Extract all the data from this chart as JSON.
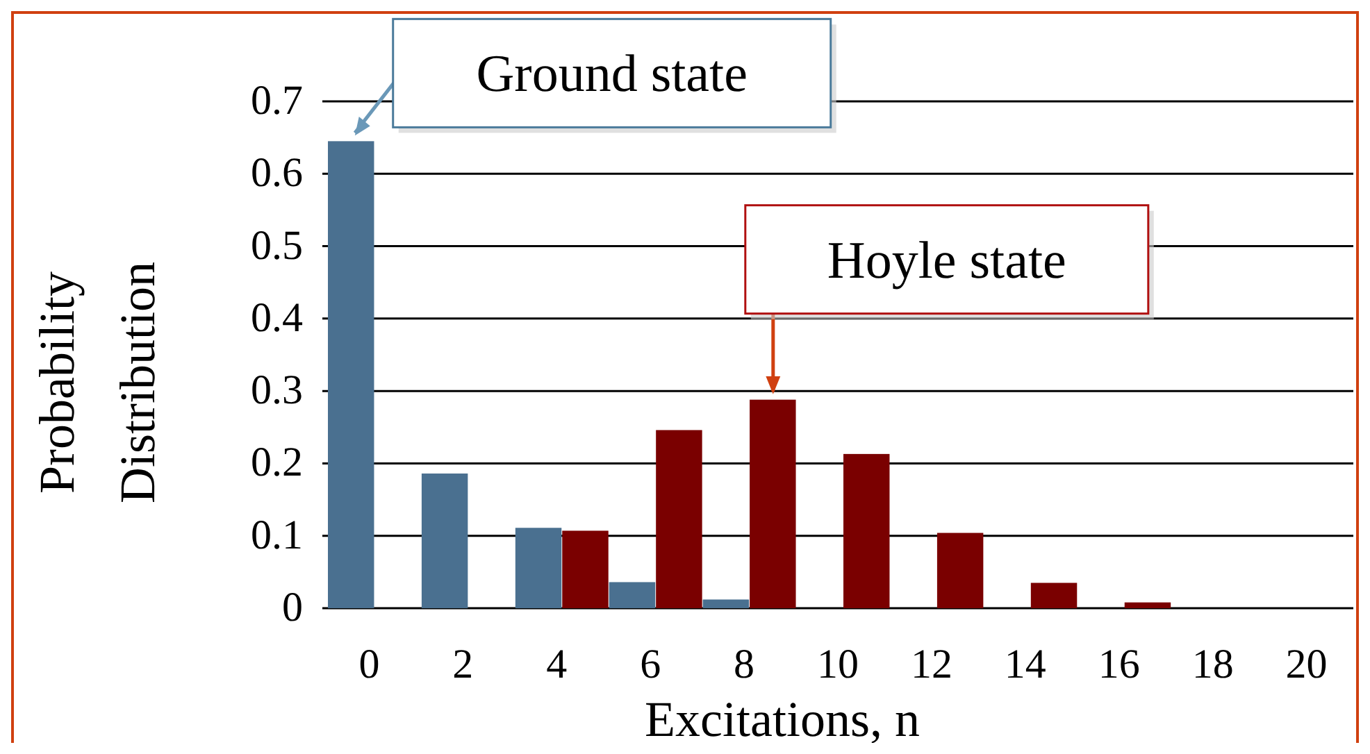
{
  "chart_data": {
    "type": "bar",
    "ylabel": "Probability Distribution",
    "xlabel": "Excitations, n",
    "categories": [
      "0",
      "2",
      "4",
      "6",
      "8",
      "10",
      "12",
      "14",
      "16",
      "18",
      "20"
    ],
    "series": [
      {
        "color": "#4a7090",
        "values": [
          0.645,
          0.186,
          0.111,
          0.036,
          0.012,
          0,
          0,
          0,
          0,
          0,
          0
        ]
      },
      {
        "color": "#7a0000",
        "values": [
          0,
          0,
          0.107,
          0.246,
          0.288,
          0.213,
          0.104,
          0.035,
          0.008,
          0,
          0
        ]
      }
    ],
    "ylim": [
      0,
      0.7
    ],
    "yticks": [
      0,
      0.1,
      0.2,
      0.3,
      0.4,
      0.5,
      0.6,
      0.7
    ],
    "grid": "y",
    "annotations": [
      {
        "text": "Ground state",
        "x": "0",
        "y": 0.645
      },
      {
        "text": "Hoyle state",
        "x": "8",
        "y": 0.288
      }
    ]
  }
}
